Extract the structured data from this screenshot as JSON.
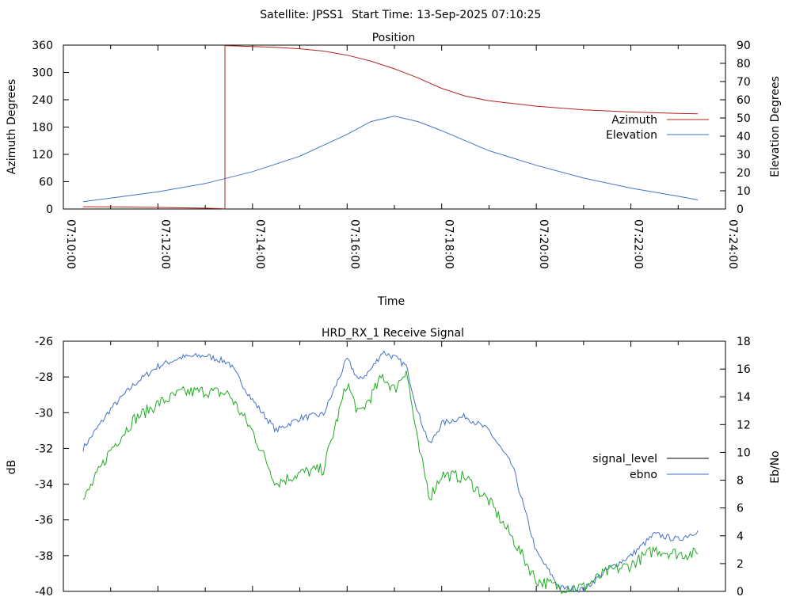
{
  "header": {
    "satellite": "Satellite: JPSS1",
    "start_time": "Start Time: 13-Sep-2025 07:10:25"
  },
  "chart_data": [
    {
      "type": "line",
      "title": "Position",
      "xlabel": "Time",
      "ylabel": "Azimuth Degrees",
      "y2label": "Elevation Degrees",
      "xlim": [
        "07:10:00",
        "07:24:00"
      ],
      "x_ticks": [
        "07:10:00",
        "07:12:00",
        "07:14:00",
        "07:16:00",
        "07:18:00",
        "07:20:00",
        "07:22:00",
        "07:24:00"
      ],
      "ylim": [
        0,
        360
      ],
      "y_ticks": [
        0,
        60,
        120,
        180,
        240,
        300,
        360
      ],
      "y2lim": [
        0,
        90
      ],
      "y2_ticks": [
        0,
        10,
        20,
        30,
        40,
        50,
        60,
        70,
        80,
        90
      ],
      "legend_position": "right",
      "series": [
        {
          "name": "Azimuth",
          "axis": "left",
          "color": "#b22222",
          "x": [
            "07:10:25",
            "07:11:00",
            "07:12:00",
            "07:13:00",
            "07:13:25",
            "07:13:25",
            "07:14:00",
            "07:14:30",
            "07:15:00",
            "07:15:30",
            "07:16:00",
            "07:16:30",
            "07:17:00",
            "07:17:30",
            "07:18:00",
            "07:18:30",
            "07:19:00",
            "07:20:00",
            "07:21:00",
            "07:22:00",
            "07:23:00",
            "07:23:25"
          ],
          "values": [
            5,
            4.5,
            3.5,
            2,
            0.5,
            359,
            357,
            355,
            352,
            347,
            338,
            325,
            308,
            288,
            265,
            248,
            238,
            226,
            218,
            213,
            210,
            209
          ]
        },
        {
          "name": "Elevation",
          "axis": "right",
          "color": "#4472c4",
          "x": [
            "07:10:25",
            "07:11:00",
            "07:12:00",
            "07:13:00",
            "07:14:00",
            "07:15:00",
            "07:16:00",
            "07:16:30",
            "07:17:00",
            "07:17:30",
            "07:18:00",
            "07:19:00",
            "07:20:00",
            "07:21:00",
            "07:22:00",
            "07:23:00",
            "07:23:25"
          ],
          "values": [
            4,
            6,
            9.5,
            14,
            20.5,
            29,
            41,
            48,
            51,
            48,
            43,
            32,
            24,
            17,
            11.5,
            7,
            5
          ]
        }
      ]
    },
    {
      "type": "line",
      "title": "HRD_RX_1 Receive Signal",
      "ylabel": "dB",
      "y2label": "Eb/No",
      "ylim": [
        -40,
        -26
      ],
      "y_ticks": [
        -40,
        -38,
        -36,
        -34,
        -32,
        -30,
        -28,
        -26
      ],
      "y2lim": [
        0,
        18
      ],
      "y2_ticks": [
        0,
        2,
        4,
        6,
        8,
        10,
        12,
        14,
        16,
        18
      ],
      "legend_position": "right",
      "series": [
        {
          "name": "signal_level",
          "axis": "left",
          "color": "#4472c4",
          "x": [
            "07:10:25",
            "07:11:00",
            "07:11:30",
            "07:12:00",
            "07:12:30",
            "07:13:00",
            "07:13:30",
            "07:14:00",
            "07:14:30",
            "07:15:00",
            "07:15:30",
            "07:16:00",
            "07:16:15",
            "07:16:30",
            "07:16:45",
            "07:17:00",
            "07:17:15",
            "07:17:30",
            "07:17:45",
            "07:18:00",
            "07:18:30",
            "07:19:00",
            "07:19:30",
            "07:20:00",
            "07:20:30",
            "07:21:00",
            "07:21:30",
            "07:22:00",
            "07:22:30",
            "07:23:00",
            "07:23:25"
          ],
          "values": [
            -32,
            -29.8,
            -28.4,
            -27.4,
            -26.9,
            -26.8,
            -27.2,
            -29.3,
            -31.0,
            -30.3,
            -30.1,
            -27.0,
            -28.2,
            -27.6,
            -26.6,
            -26.9,
            -27.4,
            -30.0,
            -31.8,
            -30.6,
            -30.2,
            -31.0,
            -33.0,
            -37.8,
            -39.8,
            -39.9,
            -38.8,
            -38.0,
            -36.8,
            -37.1,
            -36.6
          ]
        },
        {
          "name": "ebno",
          "axis": "right",
          "color": "#22aa22",
          "x": [
            "07:10:25",
            "07:11:00",
            "07:11:30",
            "07:12:00",
            "07:12:30",
            "07:13:00",
            "07:13:30",
            "07:14:00",
            "07:14:30",
            "07:15:00",
            "07:15:30",
            "07:16:00",
            "07:16:15",
            "07:16:30",
            "07:16:45",
            "07:17:00",
            "07:17:15",
            "07:17:30",
            "07:17:45",
            "07:18:00",
            "07:18:30",
            "07:19:00",
            "07:19:30",
            "07:20:00",
            "07:20:30",
            "07:21:00",
            "07:21:30",
            "07:22:00",
            "07:22:30",
            "07:23:00",
            "07:23:25"
          ],
          "values": [
            6.5,
            10.2,
            12.4,
            13.5,
            14.3,
            14.4,
            14.2,
            11.5,
            7.8,
            8.5,
            8.8,
            15.0,
            12.7,
            14.0,
            15.5,
            14.5,
            16.0,
            10.5,
            6.8,
            8.4,
            8.2,
            6.5,
            3.8,
            0.8,
            0.3,
            0.3,
            1.4,
            1.9,
            3.0,
            2.7,
            2.7
          ]
        }
      ]
    }
  ]
}
